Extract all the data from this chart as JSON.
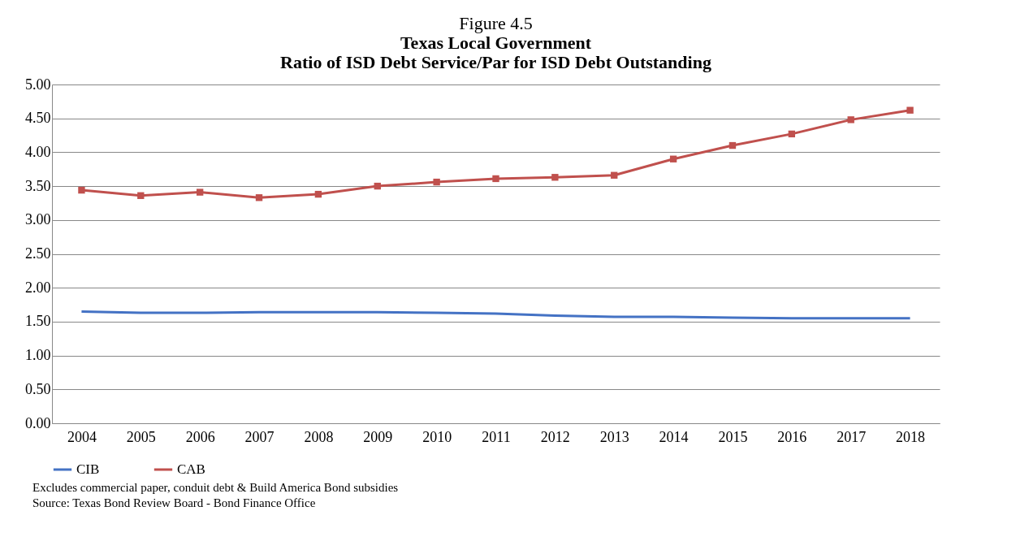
{
  "chart_data": {
    "type": "line",
    "title": "Figure 4.5",
    "subtitle": "Texas Local Government\nRatio of ISD Debt Service/Par for ISD Debt Outstanding",
    "categories": [
      "2004",
      "2005",
      "2006",
      "2007",
      "2008",
      "2009",
      "2010",
      "2011",
      "2012",
      "2013",
      "2014",
      "2015",
      "2016",
      "2017",
      "2018"
    ],
    "series": [
      {
        "name": "CIB",
        "color": "#4472c4",
        "marker": "none",
        "values": [
          1.65,
          1.63,
          1.63,
          1.64,
          1.64,
          1.64,
          1.63,
          1.62,
          1.59,
          1.57,
          1.57,
          1.56,
          1.55,
          1.55,
          1.55
        ]
      },
      {
        "name": "CAB",
        "color": "#c0504d",
        "marker": "square",
        "values": [
          3.44,
          3.36,
          3.41,
          3.33,
          3.38,
          3.5,
          3.56,
          3.61,
          3.63,
          3.66,
          3.9,
          4.1,
          4.27,
          4.48,
          4.62
        ]
      }
    ],
    "ylim": [
      0,
      5
    ],
    "yticks": [
      {
        "value": 0,
        "label": "0.00"
      },
      {
        "value": 0.5,
        "label": "0.50"
      },
      {
        "value": 1,
        "label": "1.00"
      },
      {
        "value": 1.5,
        "label": "1.50"
      },
      {
        "value": 2,
        "label": "2.00"
      },
      {
        "value": 2.5,
        "label": "2.50"
      },
      {
        "value": 3,
        "label": "3.00"
      },
      {
        "value": 3.5,
        "label": "3.50"
      },
      {
        "value": 4,
        "label": "4.00"
      },
      {
        "value": 4.5,
        "label": "4.50"
      },
      {
        "value": 5,
        "label": "5.00"
      }
    ],
    "grid": "y",
    "legend": "bottom",
    "line_style": "solid",
    "annotations": [
      "Excludes commercial paper, conduit debt & Build America Bond subsidies",
      "Source: Texas Bond Review Board - Bond Finance Office"
    ]
  }
}
